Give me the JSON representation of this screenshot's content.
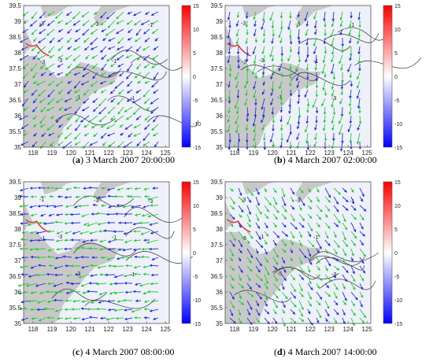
{
  "captions": [
    {
      "letter": "a",
      "text": " 3 March 2007 20:00:00"
    },
    {
      "letter": "b",
      "text": " 4 March 2007 02:00:00"
    },
    {
      "letter": "c",
      "text": " 4 March 2007 08:00:00"
    },
    {
      "letter": "d",
      "text": " 4 March 2007 14:00:00"
    }
  ],
  "chart_data": [
    {
      "type": "map_vector_field",
      "panel": "a",
      "x_ticks": [
        "118",
        "119",
        "120",
        "121",
        "122",
        "123",
        "124",
        "125"
      ],
      "y_ticks": [
        "35",
        "35.5",
        "36",
        "36.5",
        "37",
        "37.5",
        "38",
        "38.5",
        "39",
        "39.5"
      ],
      "xlim": [
        117.5,
        125.2
      ],
      "ylim": [
        35,
        39.5
      ],
      "colorbar": {
        "ticks": [
          "15",
          "10",
          "5",
          "0",
          "-5",
          "-10",
          "-15"
        ],
        "range": [
          -15,
          15
        ],
        "colors": [
          "#0000ff",
          "#ffffff",
          "#ff0000"
        ]
      },
      "contour_labels": [
        "-3",
        "-3",
        "-1",
        "-3",
        "-1",
        "-1",
        "-1",
        "-3"
      ],
      "wind_direction": "southwest",
      "vector_colors": [
        "#22cc33",
        "#2233dd"
      ]
    },
    {
      "type": "map_vector_field",
      "panel": "b",
      "x_ticks": [
        "118",
        "119",
        "120",
        "121",
        "122",
        "123",
        "124",
        "125"
      ],
      "y_ticks": [
        "35",
        "35.5",
        "36",
        "36.5",
        "37",
        "37.5",
        "38",
        "38.5",
        "39",
        "39.5"
      ],
      "xlim": [
        117.5,
        125.2
      ],
      "ylim": [
        35,
        39.5
      ],
      "colorbar": {
        "ticks": [
          "15",
          "10",
          "5",
          "0",
          "-5",
          "-10",
          "-15"
        ],
        "range": [
          -15,
          15
        ],
        "colors": [
          "#0000ff",
          "#ffffff",
          "#ff0000"
        ]
      },
      "contour_labels": [
        "-3",
        "-3",
        "-1",
        "-3",
        "-1",
        "-3",
        "-1",
        "-3"
      ],
      "wind_direction": "south",
      "vector_colors": [
        "#22cc33",
        "#2233dd"
      ]
    },
    {
      "type": "map_vector_field",
      "panel": "c",
      "x_ticks": [
        "118",
        "119",
        "120",
        "121",
        "122",
        "123",
        "124",
        "125"
      ],
      "y_ticks": [
        "35",
        "35.5",
        "36",
        "36.5",
        "37",
        "37.5",
        "38",
        "38.5",
        "39",
        "39.5"
      ],
      "xlim": [
        117.5,
        125.2
      ],
      "ylim": [
        35,
        39.5
      ],
      "colorbar": {
        "ticks": [
          "15",
          "10",
          "5",
          "0",
          "-5",
          "-10",
          "-15"
        ],
        "range": [
          -15,
          15
        ],
        "colors": [
          "#0000ff",
          "#ffffff",
          "#ff0000"
        ]
      },
      "contour_labels": [
        "-1",
        "-3",
        "-3",
        "-3",
        "-1",
        "-1",
        "-3",
        "-1"
      ],
      "wind_direction": "west",
      "vector_colors": [
        "#22cc33",
        "#2233dd"
      ]
    },
    {
      "type": "map_vector_field",
      "panel": "d",
      "x_ticks": [
        "118",
        "119",
        "120",
        "121",
        "122",
        "123",
        "124",
        "125"
      ],
      "y_ticks": [
        "35",
        "35.5",
        "36",
        "36.5",
        "37",
        "37.5",
        "38",
        "38.5",
        "39",
        "39.5"
      ],
      "xlim": [
        117.5,
        125.2
      ],
      "ylim": [
        35,
        39.5
      ],
      "colorbar": {
        "ticks": [
          "15",
          "10",
          "5",
          "0",
          "-5",
          "-10",
          "-15"
        ],
        "range": [
          -15,
          15
        ],
        "colors": [
          "#0000ff",
          "#ffffff",
          "#ff0000"
        ]
      },
      "contour_labels": [
        "-3",
        "-1",
        "-5",
        "-3",
        "-1",
        "-3",
        "-1",
        "-5"
      ],
      "wind_direction": "southeast",
      "vector_colors": [
        "#22cc33",
        "#2233dd"
      ]
    }
  ]
}
